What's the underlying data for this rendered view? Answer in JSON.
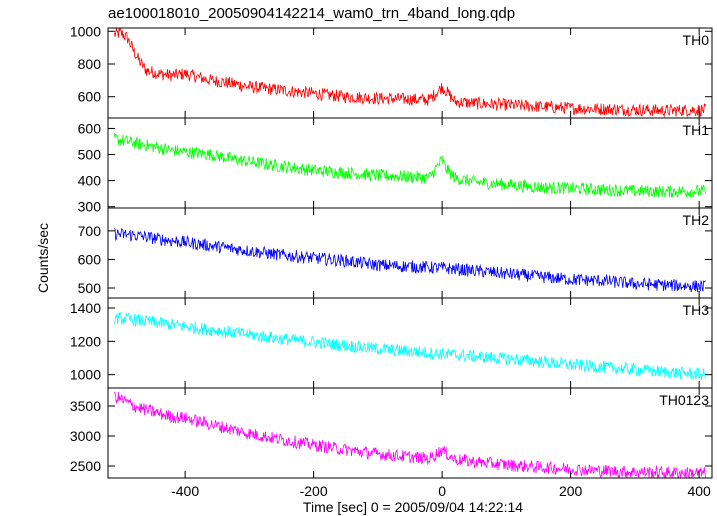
{
  "chart_data": {
    "type": "line",
    "title": "ae100018010_20050904142214_wam0_trn_4band_long.qdp",
    "xlabel": "Time [sec] 0 = 2005/09/04 14:22:14",
    "ylabel": "Counts/sec",
    "xlim": [
      -520,
      420
    ],
    "x_ticks": [
      -400,
      -200,
      0,
      200,
      400
    ],
    "grid": false,
    "panels": [
      {
        "name": "TH0",
        "color": "#ff0000",
        "ylim": [
          470,
          1020
        ],
        "y_ticks": [
          600,
          800,
          1000
        ],
        "x": [
          -510,
          -500,
          -490,
          -480,
          -470,
          -460,
          -440,
          -420,
          -400,
          -380,
          -360,
          -340,
          -300,
          -250,
          -200,
          -150,
          -100,
          -50,
          -20,
          0,
          5,
          20,
          50,
          100,
          150,
          200,
          250,
          300,
          350,
          410
        ],
        "y": [
          980,
          990,
          960,
          880,
          810,
          760,
          740,
          730,
          740,
          720,
          700,
          690,
          660,
          640,
          620,
          600,
          590,
          585,
          580,
          660,
          640,
          570,
          560,
          550,
          540,
          530,
          525,
          520,
          515,
          520
        ]
      },
      {
        "name": "TH1",
        "color": "#00ff00",
        "ylim": [
          295,
          640
        ],
        "y_ticks": [
          300,
          400,
          500,
          600
        ],
        "x": [
          -510,
          -480,
          -450,
          -420,
          -400,
          -360,
          -320,
          -280,
          -250,
          -200,
          -150,
          -100,
          -50,
          -20,
          0,
          5,
          20,
          50,
          100,
          150,
          200,
          250,
          300,
          350,
          410
        ],
        "y": [
          560,
          545,
          530,
          515,
          510,
          500,
          480,
          465,
          455,
          440,
          430,
          420,
          415,
          410,
          480,
          450,
          410,
          395,
          385,
          375,
          370,
          365,
          360,
          358,
          360
        ]
      },
      {
        "name": "TH2",
        "color": "#0000ff",
        "ylim": [
          465,
          780
        ],
        "y_ticks": [
          500,
          600,
          700
        ],
        "x": [
          -510,
          -480,
          -450,
          -420,
          -400,
          -350,
          -300,
          -250,
          -200,
          -150,
          -100,
          -50,
          0,
          50,
          100,
          150,
          200,
          250,
          300,
          350,
          410
        ],
        "y": [
          690,
          685,
          675,
          665,
          660,
          645,
          630,
          615,
          605,
          595,
          580,
          575,
          570,
          560,
          550,
          540,
          530,
          525,
          515,
          510,
          505
        ]
      },
      {
        "name": "TH3",
        "color": "#00ffff",
        "ylim": [
          920,
          1460
        ],
        "y_ticks": [
          1000,
          1200,
          1400
        ],
        "x": [
          -510,
          -480,
          -450,
          -420,
          -400,
          -350,
          -300,
          -250,
          -200,
          -150,
          -100,
          -50,
          0,
          50,
          100,
          150,
          200,
          250,
          300,
          350,
          410
        ],
        "y": [
          1340,
          1330,
          1315,
          1300,
          1290,
          1265,
          1240,
          1215,
          1195,
          1175,
          1155,
          1140,
          1125,
          1110,
          1095,
          1080,
          1060,
          1045,
          1030,
          1015,
          1000
        ]
      },
      {
        "name": "TH0123",
        "color": "#ff00ff",
        "ylim": [
          2300,
          3800
        ],
        "y_ticks": [
          2500,
          3000,
          3500
        ],
        "x": [
          -510,
          -500,
          -480,
          -450,
          -420,
          -400,
          -350,
          -300,
          -250,
          -200,
          -150,
          -100,
          -50,
          -20,
          0,
          5,
          20,
          50,
          100,
          150,
          200,
          250,
          300,
          350,
          410
        ],
        "y": [
          3650,
          3620,
          3500,
          3400,
          3320,
          3300,
          3170,
          3040,
          2940,
          2850,
          2770,
          2700,
          2650,
          2620,
          2770,
          2720,
          2610,
          2570,
          2520,
          2480,
          2450,
          2420,
          2400,
          2390,
          2380
        ]
      }
    ]
  }
}
